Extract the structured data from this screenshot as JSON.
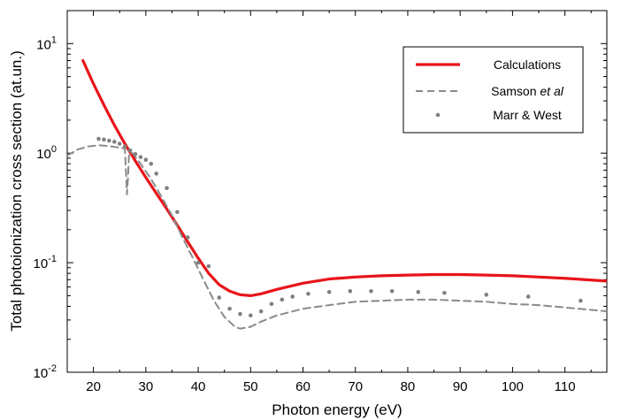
{
  "chart_data": {
    "type": "line",
    "xlabel": "Photon energy (eV)",
    "ylabel": "Total photoionization cross section (at.un.)",
    "xlim": [
      15,
      118
    ],
    "ylim": [
      0.01,
      20
    ],
    "y_scale": "log",
    "x_ticks": [
      20,
      30,
      40,
      50,
      60,
      70,
      80,
      90,
      100,
      110
    ],
    "y_ticks": [
      {
        "value": 0.01,
        "base": "10",
        "exp": "-2"
      },
      {
        "value": 0.1,
        "base": "10",
        "exp": "-1"
      },
      {
        "value": 1,
        "base": "10",
        "exp": "0"
      },
      {
        "value": 10,
        "base": "10",
        "exp": "1"
      }
    ],
    "grid": false,
    "legend_position": "top-right",
    "series": [
      {
        "name": "Calculations",
        "name_parts": [
          {
            "text": "Calculations",
            "italic": false
          }
        ],
        "style": "solid",
        "color": "#e8141a",
        "x": [
          18,
          20,
          22,
          24,
          26,
          28,
          30,
          32,
          34,
          36,
          38,
          40,
          42,
          44,
          46,
          48,
          50,
          52,
          55,
          60,
          65,
          70,
          75,
          80,
          85,
          90,
          95,
          100,
          105,
          110,
          118
        ],
        "y": [
          7.0,
          4.3,
          2.75,
          1.8,
          1.22,
          0.85,
          0.6,
          0.43,
          0.31,
          0.22,
          0.155,
          0.11,
          0.08,
          0.063,
          0.055,
          0.051,
          0.05,
          0.052,
          0.057,
          0.065,
          0.071,
          0.074,
          0.076,
          0.077,
          0.078,
          0.078,
          0.077,
          0.076,
          0.074,
          0.072,
          0.068
        ]
      },
      {
        "name": "Samson et al",
        "name_parts": [
          {
            "text": "Samson ",
            "italic": false
          },
          {
            "text": "et al",
            "italic": true
          }
        ],
        "style": "dashed",
        "color": "#8a8a8a",
        "x": [
          15,
          17,
          19,
          21,
          23,
          25,
          26,
          26.2,
          26.4,
          26.6,
          26.8,
          27.5,
          29,
          31,
          33,
          35,
          37,
          39,
          41,
          43,
          45,
          47,
          48,
          50,
          52,
          55,
          60,
          65,
          70,
          75,
          80,
          85,
          90,
          95,
          100,
          105,
          110,
          118
        ],
        "y": [
          0.95,
          1.08,
          1.15,
          1.18,
          1.16,
          1.12,
          1.1,
          0.7,
          0.42,
          0.6,
          1.0,
          1.0,
          0.8,
          0.58,
          0.4,
          0.27,
          0.17,
          0.11,
          0.07,
          0.045,
          0.032,
          0.026,
          0.025,
          0.026,
          0.029,
          0.033,
          0.038,
          0.041,
          0.044,
          0.045,
          0.046,
          0.046,
          0.045,
          0.044,
          0.042,
          0.041,
          0.039,
          0.036
        ]
      },
      {
        "name": "Marr & West",
        "name_parts": [
          {
            "text": "Marr & West",
            "italic": false
          }
        ],
        "style": "dots",
        "color": "#808080",
        "x": [
          21,
          22,
          23,
          24,
          25,
          26,
          27,
          28,
          29,
          30,
          31,
          32,
          34,
          36,
          38,
          40,
          42,
          44,
          46,
          48,
          50,
          52,
          54,
          56,
          58,
          61,
          65,
          69,
          73,
          77,
          82,
          87,
          95,
          103,
          113
        ],
        "y": [
          1.35,
          1.33,
          1.3,
          1.27,
          1.22,
          1.15,
          1.06,
          0.98,
          0.92,
          0.87,
          0.8,
          0.65,
          0.48,
          0.29,
          0.17,
          0.1,
          0.093,
          0.048,
          0.038,
          0.034,
          0.033,
          0.036,
          0.042,
          0.046,
          0.049,
          0.052,
          0.054,
          0.055,
          0.055,
          0.055,
          0.054,
          0.053,
          0.051,
          0.049,
          0.045
        ]
      }
    ]
  }
}
